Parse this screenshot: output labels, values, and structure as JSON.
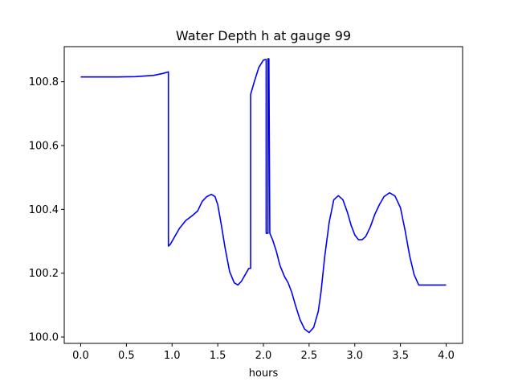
{
  "chart_data": {
    "type": "line",
    "title": "Water Depth h at gauge 99",
    "xlabel": "hours",
    "ylabel": "",
    "xlim": [
      -0.18,
      4.18
    ],
    "ylim": [
      99.98,
      100.91
    ],
    "x_ticks": [
      0.0,
      0.5,
      1.0,
      1.5,
      2.0,
      2.5,
      3.0,
      3.5,
      4.0
    ],
    "x_tick_labels": [
      "0.0",
      "0.5",
      "1.0",
      "1.5",
      "2.0",
      "2.5",
      "3.0",
      "3.5",
      "4.0"
    ],
    "y_ticks": [
      100.0,
      100.2,
      100.4,
      100.6,
      100.8
    ],
    "y_tick_labels": [
      "100.0",
      "100.2",
      "100.4",
      "100.6",
      "100.8"
    ],
    "grid": false,
    "legend": "none",
    "series": [
      {
        "color": "#0000ff",
        "x": [
          0.0,
          0.2,
          0.4,
          0.6,
          0.8,
          0.9,
          0.96,
          0.96,
          0.98,
          1.02,
          1.08,
          1.15,
          1.22,
          1.28,
          1.33,
          1.38,
          1.43,
          1.47,
          1.5,
          1.54,
          1.58,
          1.63,
          1.68,
          1.72,
          1.76,
          1.8,
          1.84,
          1.86,
          1.86,
          1.9,
          1.95,
          2.0,
          2.03,
          2.03,
          2.05,
          2.05,
          2.06,
          2.07,
          2.1,
          2.14,
          2.18,
          2.23,
          2.27,
          2.31,
          2.35,
          2.4,
          2.45,
          2.5,
          2.55,
          2.6,
          2.63,
          2.67,
          2.72,
          2.77,
          2.82,
          2.87,
          2.92,
          2.96,
          3.0,
          3.04,
          3.08,
          3.12,
          3.17,
          3.22,
          3.27,
          3.32,
          3.38,
          3.44,
          3.5,
          3.55,
          3.6,
          3.65,
          3.7,
          3.75,
          3.8,
          3.85,
          3.9,
          3.95,
          4.0
        ],
        "y": [
          100.815,
          100.815,
          100.815,
          100.816,
          100.82,
          100.826,
          100.831,
          100.285,
          100.29,
          100.31,
          100.34,
          100.365,
          100.38,
          100.395,
          100.425,
          100.44,
          100.447,
          100.44,
          100.415,
          100.35,
          100.28,
          100.205,
          100.17,
          100.163,
          100.175,
          100.195,
          100.215,
          100.215,
          100.76,
          100.8,
          100.845,
          100.868,
          100.87,
          100.325,
          100.325,
          100.872,
          100.872,
          100.325,
          100.305,
          100.27,
          100.225,
          100.19,
          100.17,
          100.14,
          100.1,
          100.055,
          100.025,
          100.014,
          100.03,
          100.08,
          100.14,
          100.25,
          100.36,
          100.43,
          100.443,
          100.43,
          100.39,
          100.35,
          100.32,
          100.305,
          100.305,
          100.315,
          100.345,
          100.385,
          100.415,
          100.44,
          100.452,
          100.442,
          100.405,
          100.335,
          100.255,
          100.195,
          100.163,
          100.163,
          100.163,
          100.163,
          100.163,
          100.163,
          100.163
        ]
      }
    ]
  }
}
